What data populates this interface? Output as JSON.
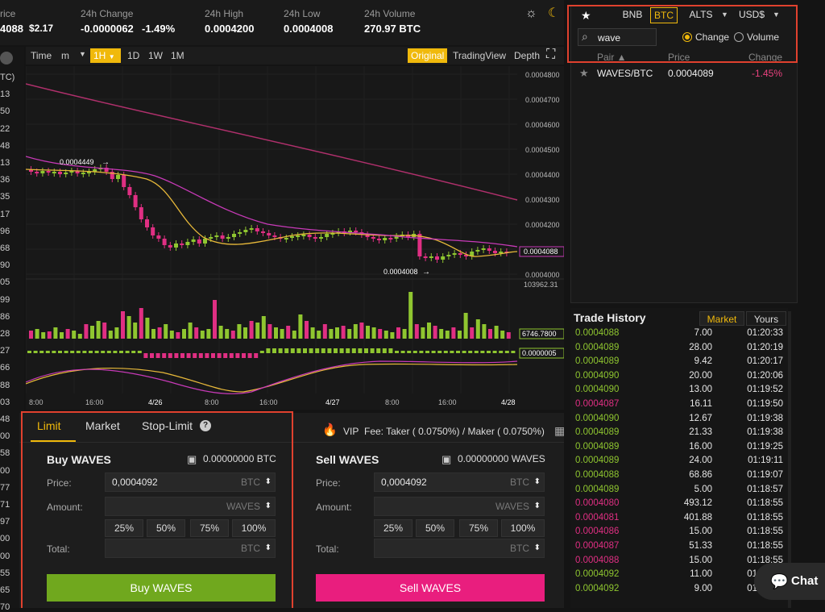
{
  "header": {
    "price_label": "rice",
    "price_value": "4088",
    "price_usd": "$2.17",
    "change_label": "24h Change",
    "change_value": "-0.0000062",
    "change_pct": "-1.49%",
    "high_label": "24h High",
    "high_value": "0.0004200",
    "low_label": "24h Low",
    "low_value": "0.0004008",
    "volume_label": "24h Volume",
    "volume_value": "270.97 BTC"
  },
  "toolbar": {
    "time": "Time",
    "m": "m",
    "h1": "1H",
    "d1": "1D",
    "w1": "1W",
    "mo1": "1M",
    "original": "Original",
    "tradingview": "TradingView",
    "depth": "Depth"
  },
  "left_axis": [
    "TC)",
    "13",
    "50",
    "22",
    "48",
    "13",
    "36",
    "35",
    "17",
    "96",
    "68",
    "90",
    "05",
    "99",
    "86",
    "28",
    "27",
    "66",
    "88",
    "03",
    "48",
    "00",
    "58",
    "00",
    "77",
    "71",
    "97",
    "00",
    "00",
    "55",
    "65",
    "70"
  ],
  "chart": {
    "yticks": [
      "0.0004800",
      "0.0004700",
      "0.0004600",
      "0.0004500",
      "0.0004400",
      "0.0004300",
      "0.0004200",
      "0.0004100",
      "0.0004000"
    ],
    "current_price": "0.0004088",
    "high_marker": "0.0004449",
    "low_marker": "0.0004008",
    "vol_max": "103962.31",
    "vol_current": "6746.7800",
    "macd_value": "0.0000005",
    "xticks": [
      "8:00",
      "16:00",
      "4/26",
      "8:00",
      "16:00",
      "4/27",
      "8:00",
      "16:00",
      "4/28"
    ],
    "colors": {
      "up": "#8fc630",
      "down": "#e02f83",
      "ma_short": "#e8b93a",
      "ma_long": "#c83ab8"
    }
  },
  "market": {
    "tabs": [
      "BNB",
      "BTC",
      "ALTS",
      "USD$"
    ],
    "search_value": "wave",
    "radio_change": "Change",
    "radio_volume": "Volume",
    "col_pair": "Pair ▲",
    "col_price": "Price",
    "col_change": "Change",
    "rows": [
      {
        "pair": "WAVES/BTC",
        "price": "0.0004089",
        "change": "-1.45%"
      }
    ]
  },
  "trade_history": {
    "title": "Trade History",
    "tab_market": "Market",
    "tab_yours": "Yours",
    "rows": [
      {
        "price": "0.0004088",
        "amount": "7.00",
        "time": "01:20:33",
        "side": "buy"
      },
      {
        "price": "0.0004089",
        "amount": "28.00",
        "time": "01:20:19",
        "side": "buy"
      },
      {
        "price": "0.0004089",
        "amount": "9.42",
        "time": "01:20:17",
        "side": "buy"
      },
      {
        "price": "0.0004090",
        "amount": "20.00",
        "time": "01:20:06",
        "side": "buy"
      },
      {
        "price": "0.0004090",
        "amount": "13.00",
        "time": "01:19:52",
        "side": "buy"
      },
      {
        "price": "0.0004087",
        "amount": "16.11",
        "time": "01:19:50",
        "side": "sell"
      },
      {
        "price": "0.0004090",
        "amount": "12.67",
        "time": "01:19:38",
        "side": "buy"
      },
      {
        "price": "0.0004089",
        "amount": "21.33",
        "time": "01:19:38",
        "side": "buy"
      },
      {
        "price": "0.0004089",
        "amount": "16.00",
        "time": "01:19:25",
        "side": "buy"
      },
      {
        "price": "0.0004089",
        "amount": "24.00",
        "time": "01:19:11",
        "side": "buy"
      },
      {
        "price": "0.0004088",
        "amount": "68.86",
        "time": "01:19:07",
        "side": "buy"
      },
      {
        "price": "0.0004089",
        "amount": "5.00",
        "time": "01:18:57",
        "side": "buy"
      },
      {
        "price": "0.0004080",
        "amount": "493.12",
        "time": "01:18:55",
        "side": "sell"
      },
      {
        "price": "0.0004081",
        "amount": "401.88",
        "time": "01:18:55",
        "side": "sell"
      },
      {
        "price": "0.0004086",
        "amount": "15.00",
        "time": "01:18:55",
        "side": "sell"
      },
      {
        "price": "0.0004087",
        "amount": "51.33",
        "time": "01:18:55",
        "side": "sell"
      },
      {
        "price": "0.0004088",
        "amount": "15.00",
        "time": "01:18:55",
        "side": "sell"
      },
      {
        "price": "0.0004092",
        "amount": "11.00",
        "time": "01:18:55",
        "side": "buy"
      },
      {
        "price": "0.0004092",
        "amount": "9.00",
        "time": "01:18:55",
        "side": "buy"
      }
    ]
  },
  "order": {
    "tab_limit": "Limit",
    "tab_market": "Market",
    "tab_stop": "Stop-Limit",
    "vip": "VIP",
    "fee": "Fee: Taker ( 0.0750%) / Maker ( 0.0750%)",
    "buy_title": "Buy WAVES",
    "buy_balance": "0.00000000 BTC",
    "sell_title": "Sell WAVES",
    "sell_balance": "0.00000000 WAVES",
    "price_label": "Price:",
    "amount_label": "Amount:",
    "total_label": "Total:",
    "price_value": "0,0004092",
    "unit_btc": "BTC",
    "unit_waves": "WAVES",
    "pcts": [
      "25%",
      "50%",
      "75%",
      "100%"
    ],
    "buy_button": "Buy WAVES",
    "sell_button": "Sell WAVES"
  },
  "chat_label": "Chat"
}
